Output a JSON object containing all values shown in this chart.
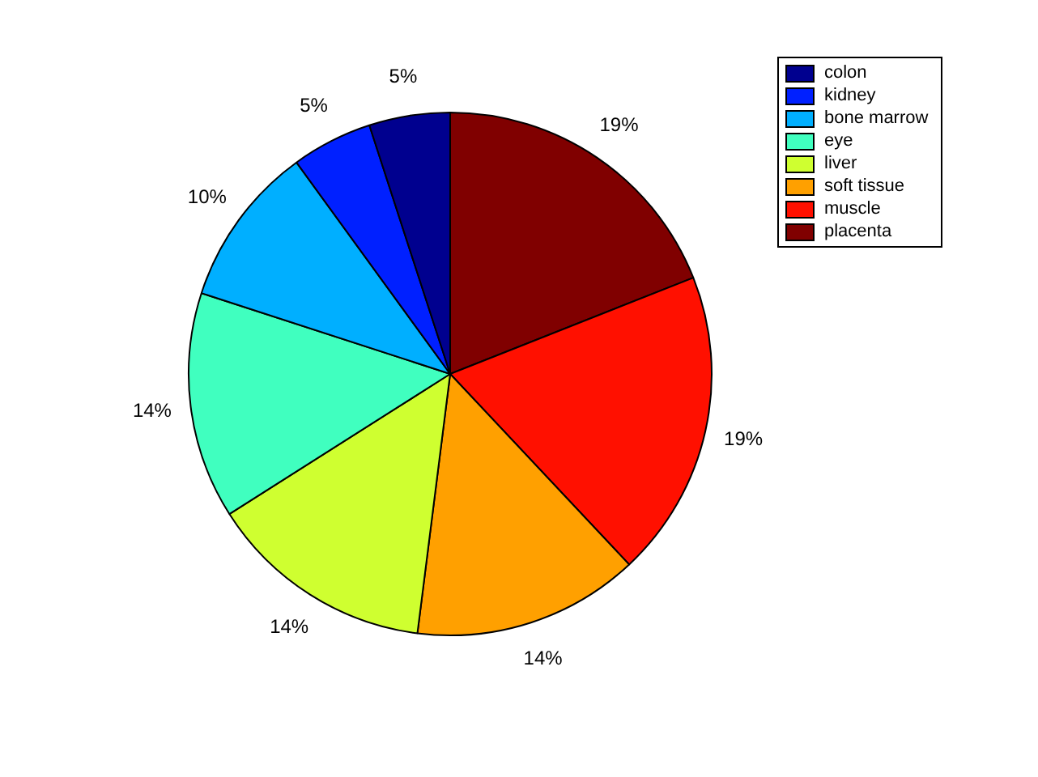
{
  "chart_data": {
    "type": "pie",
    "categories": [
      "colon",
      "kidney",
      "bone marrow",
      "eye",
      "liver",
      "soft tissue",
      "muscle",
      "placenta"
    ],
    "values": [
      5,
      5,
      10,
      14,
      14,
      14,
      19,
      19
    ],
    "value_labels": [
      "5%",
      "5%",
      "10%",
      "14%",
      "14%",
      "14%",
      "19%",
      "19%"
    ],
    "colors": [
      "#00008f",
      "#0020ff",
      "#00afff",
      "#40ffbf",
      "#cfff30",
      "#ffa000",
      "#ff1000",
      "#800000"
    ],
    "legend": "top right"
  }
}
